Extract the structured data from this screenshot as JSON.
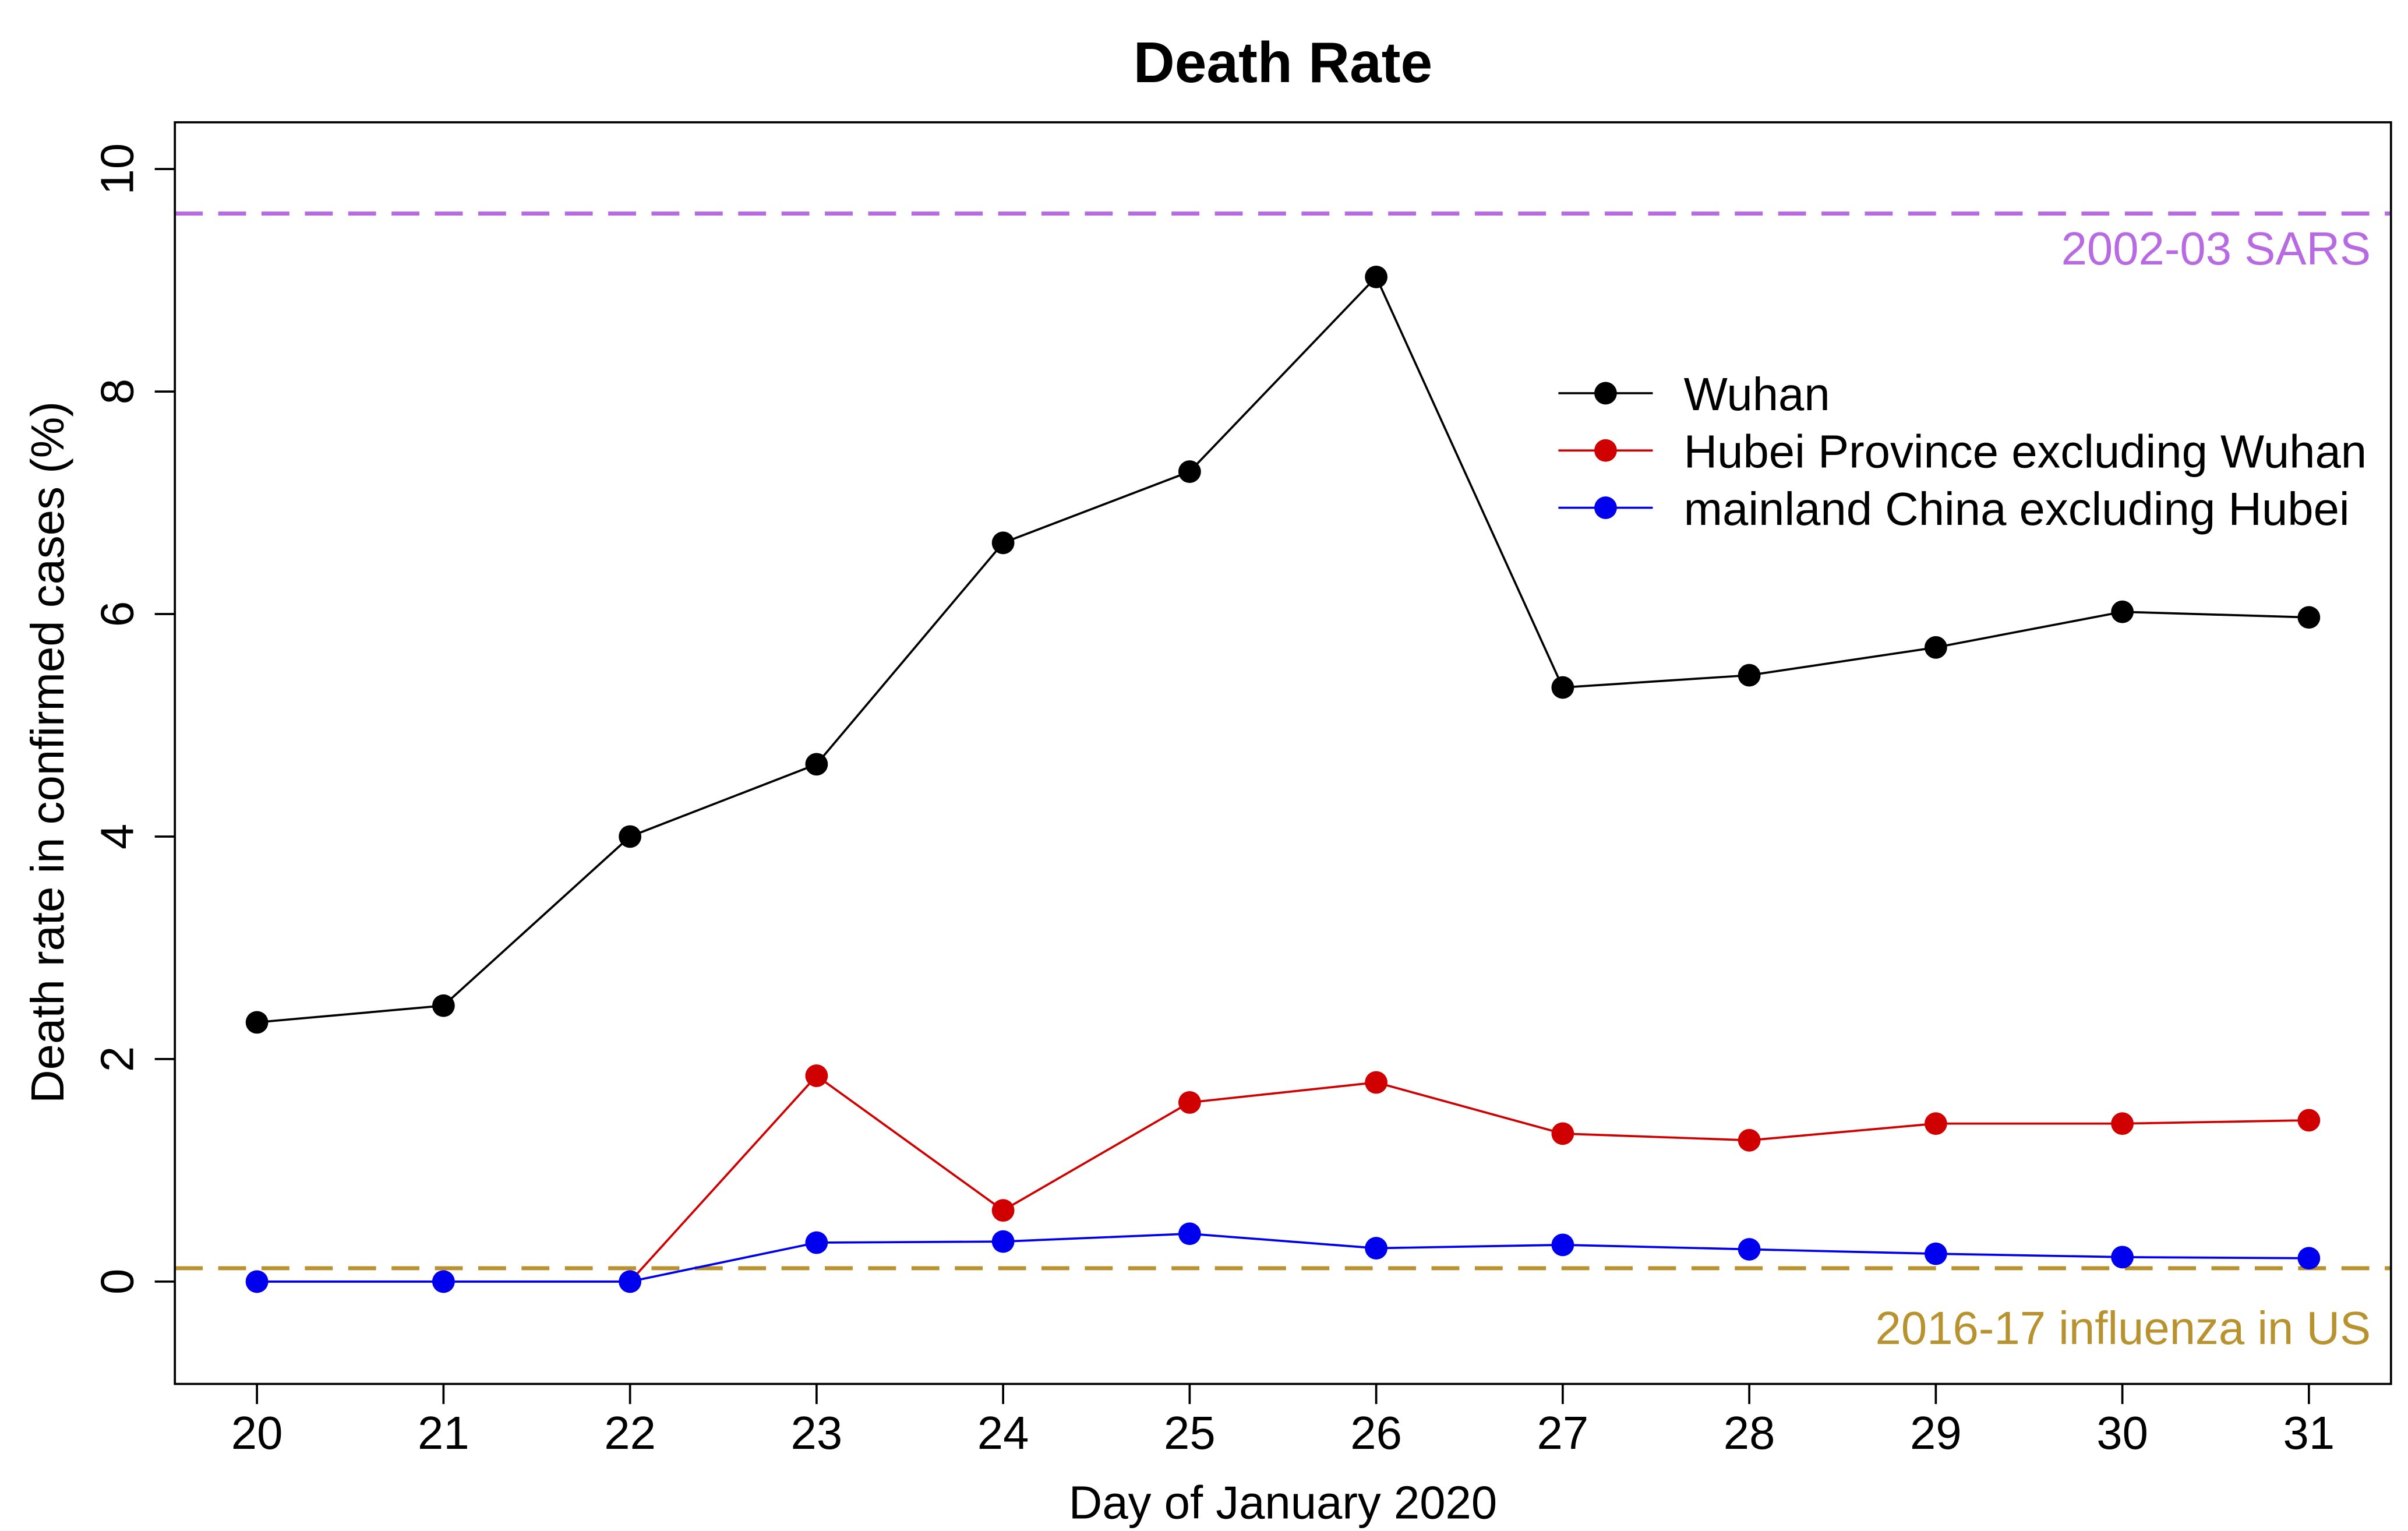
{
  "chart_data": {
    "type": "line",
    "title": "Death Rate",
    "xlabel": "Day of January 2020",
    "ylabel": "Death rate in confirmed cases (%)",
    "x": [
      20,
      21,
      22,
      23,
      24,
      25,
      26,
      27,
      28,
      29,
      30,
      31
    ],
    "y_ticks": [
      0,
      2,
      4,
      6,
      8,
      10
    ],
    "xlim": [
      19.56,
      31.44
    ],
    "ylim": [
      -0.92,
      10.42
    ],
    "grid": false,
    "legend_position": "top-right",
    "series": [
      {
        "name": "Wuhan",
        "color": "#000000",
        "values": [
          2.33,
          2.48,
          4.0,
          4.65,
          6.64,
          7.28,
          9.03,
          5.34,
          5.45,
          5.7,
          6.02,
          5.97
        ]
      },
      {
        "name": "Hubei Province excluding Wuhan",
        "color": "#d00000",
        "values": [
          0,
          0,
          0,
          1.85,
          0.64,
          1.61,
          1.79,
          1.33,
          1.27,
          1.42,
          1.42,
          1.45
        ]
      },
      {
        "name": "mainland China excluding Hubei",
        "color": "#0000ee",
        "values": [
          0,
          0,
          0,
          0.35,
          0.36,
          0.43,
          0.3,
          0.33,
          0.29,
          0.25,
          0.22,
          0.21
        ]
      }
    ],
    "reference_lines": [
      {
        "label": "2002-03 SARS",
        "value": 9.6,
        "color": "#b86ae2"
      },
      {
        "label": "2016-17 influenza in US",
        "value": 0.12,
        "color": "#b8922e"
      }
    ]
  }
}
